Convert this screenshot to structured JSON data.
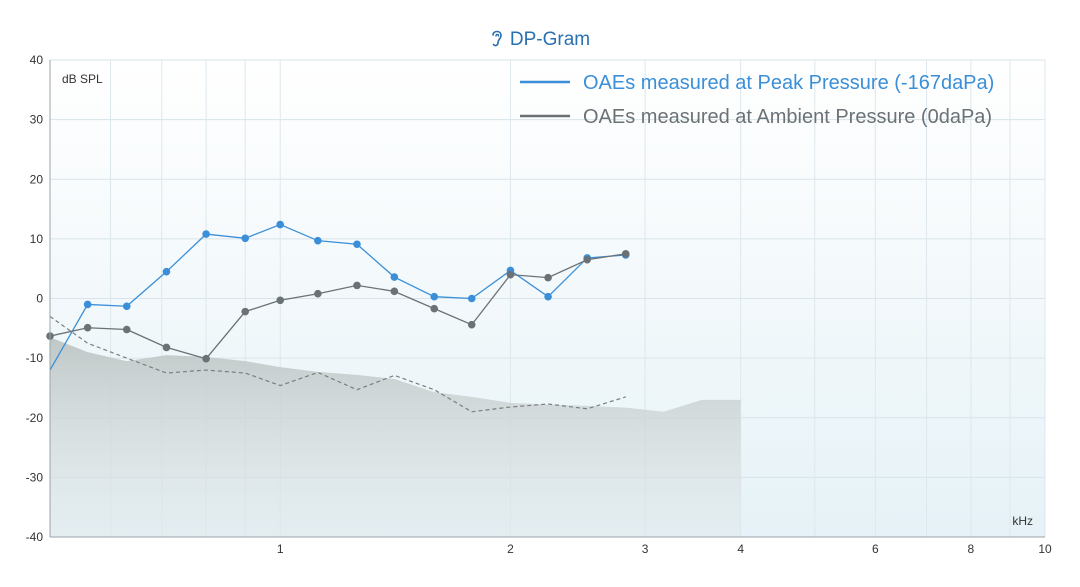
{
  "chart_data": {
    "type": "line",
    "title": "DP-Gram",
    "title_icon": "ear-icon",
    "ylabel": "dB SPL",
    "xlabel": "kHz",
    "x_scale": "log",
    "xlim": [
      0.5,
      10
    ],
    "ylim": [
      -40,
      40
    ],
    "y_ticks": [
      40,
      30,
      20,
      10,
      0,
      -10,
      -20,
      -30,
      -40
    ],
    "x_ticks": [
      1,
      2,
      3,
      4,
      6,
      8,
      10
    ],
    "grid": true,
    "legend_position": "top-right",
    "colors": {
      "title": "#2a6fb0",
      "peak": "#3a8fd8",
      "ambient": "#6b7276",
      "noise_fill": "#c9d0d0",
      "noise_line": "#7a7f82",
      "background_top": "#ffffff",
      "background_bottom": "#e6f2f7"
    },
    "series": [
      {
        "name": "OAEs measured at Peak Pressure (-167daPa)",
        "color": "#3a8fd8",
        "x": [
          0.5,
          0.56,
          0.63,
          0.71,
          0.8,
          0.9,
          1.0,
          1.12,
          1.26,
          1.41,
          1.59,
          1.78,
          2.0,
          2.24,
          2.52,
          2.83,
          3.17,
          3.56,
          4.0
        ],
        "y": [
          -12,
          -1,
          -1.3,
          4.5,
          10.8,
          10.1,
          12.4,
          9.7,
          9.1,
          3.6,
          0.3,
          0,
          4.7,
          0.3,
          6.8,
          7.3,
          null,
          null,
          null
        ],
        "markers_from_index": 1
      },
      {
        "name": "OAEs measured at Ambient Pressure (0daPa)",
        "color": "#6b7276",
        "x": [
          0.5,
          0.56,
          0.63,
          0.71,
          0.8,
          0.9,
          1.0,
          1.12,
          1.26,
          1.41,
          1.59,
          1.78,
          2.0,
          2.24,
          2.52,
          2.83,
          3.17,
          3.56,
          4.0
        ],
        "y": [
          -6.3,
          -4.9,
          -5.2,
          -8.2,
          -10.1,
          -2.2,
          -0.3,
          0.8,
          2.2,
          1.2,
          -1.7,
          -4.4,
          4,
          3.5,
          6.5,
          7.5,
          null,
          null,
          null
        ]
      }
    ],
    "noise_floor": {
      "x": [
        0.5,
        0.56,
        0.63,
        0.71,
        0.8,
        0.9,
        1.0,
        1.12,
        1.26,
        1.41,
        1.59,
        1.78,
        2.0,
        2.24,
        2.52,
        2.83,
        3.17,
        3.56,
        4.0
      ],
      "y": [
        -6.5,
        -9,
        -10.5,
        -9.5,
        -9.8,
        -10.5,
        -11.5,
        -12.3,
        -12.8,
        -13.5,
        -15.7,
        -16.5,
        -17.5,
        -17.8,
        -18,
        -18.3,
        -19,
        -17,
        -17
      ]
    },
    "noise_floor_dashed": {
      "x": [
        0.5,
        0.56,
        0.63,
        0.71,
        0.8,
        0.9,
        1.0,
        1.12,
        1.26,
        1.41,
        1.59,
        1.78,
        2.0,
        2.24,
        2.52,
        2.83,
        3.17,
        3.56,
        4.0
      ],
      "y": [
        -3,
        -7.5,
        -10,
        -12.5,
        -12,
        -12.5,
        -14.6,
        -12.4,
        -15.3,
        -12.9,
        -15.3,
        -19,
        -18.2,
        -17.7,
        -18.5,
        -16.5,
        null,
        null,
        null
      ]
    }
  }
}
